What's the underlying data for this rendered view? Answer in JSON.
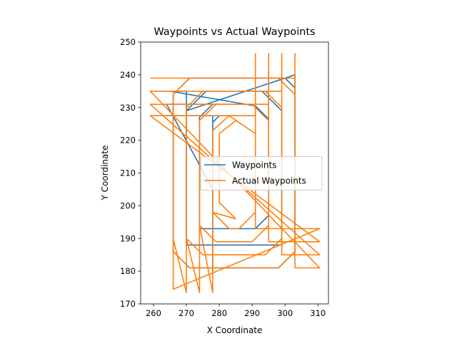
{
  "chart_data": {
    "type": "line",
    "title": "Waypoints vs Actual Waypoints",
    "xlabel": "X Coordinate",
    "ylabel": "Y Coordinate",
    "xlim": [
      256.1,
      313.2
    ],
    "ylim": [
      170,
      250
    ],
    "xticks": [
      "260",
      "270",
      "280",
      "290",
      "300",
      "310"
    ],
    "yticks": [
      "170",
      "180",
      "190",
      "200",
      "210",
      "220",
      "230",
      "240",
      "250"
    ],
    "grid": false,
    "legend_position": "center-right",
    "series": [
      {
        "name": "Waypoints",
        "color": "#1f77b4",
        "points": [
          [
            278.0,
            179.0
          ],
          [
            278.0,
            227.5
          ],
          [
            264.0,
            227.5
          ],
          [
            283.0,
            227.5
          ],
          [
            280.0,
            227.5
          ],
          [
            278.0,
            225.5
          ],
          [
            278.0,
            205.0
          ],
          [
            264.0,
            231.0
          ],
          [
            287.0,
            231.0
          ],
          [
            278.0,
            231.0
          ],
          [
            274.0,
            227.0
          ],
          [
            274.0,
            193.0
          ],
          [
            291.0,
            193.0
          ],
          [
            295.0,
            197.0
          ],
          [
            295.0,
            241.0
          ],
          [
            295.0,
            226.5
          ],
          [
            291.0,
            230.5
          ],
          [
            265.0,
            235.0
          ],
          [
            270.0,
            235.0
          ],
          [
            270.0,
            188.0
          ],
          [
            299.0,
            188.0
          ],
          [
            299.0,
            229.0
          ],
          [
            293.0,
            235.0
          ],
          [
            276.0,
            235.0
          ],
          [
            270.0,
            229.0
          ],
          [
            303.0,
            240.0
          ],
          [
            303.0,
            186.0
          ],
          [
            298.0,
            181.0
          ],
          [
            271.0,
            181.0
          ],
          [
            266.0,
            186.0
          ],
          [
            266.0,
            234.0
          ],
          [
            271.0,
            239.0
          ],
          [
            300.0,
            239.0
          ],
          [
            303.0,
            236.0
          ]
        ]
      },
      {
        "name": "Actual Waypoints",
        "color": "#ff7f0e",
        "points": [
          [
            259.0,
            239.0
          ],
          [
            298.0,
            239.0
          ],
          [
            303.0,
            234.0
          ],
          [
            303.0,
            186.0
          ],
          [
            298.0,
            181.0
          ],
          [
            271.0,
            181.0
          ],
          [
            266.0,
            186.0
          ],
          [
            266.0,
            234.0
          ],
          [
            271.0,
            239.0
          ],
          [
            303.0,
            239.0
          ],
          [
            303.0,
            246.5
          ],
          [
            303.0,
            181.0
          ],
          [
            310.5,
            181.0
          ],
          [
            259.0,
            235.0
          ],
          [
            294.0,
            235.0
          ],
          [
            299.0,
            230.0
          ],
          [
            299.0,
            190.0
          ],
          [
            294.0,
            185.0
          ],
          [
            275.0,
            185.0
          ],
          [
            270.0,
            190.0
          ],
          [
            270.0,
            230.0
          ],
          [
            275.0,
            235.0
          ],
          [
            299.0,
            235.0
          ],
          [
            299.0,
            246.5
          ],
          [
            299.0,
            185.0
          ],
          [
            310.5,
            185.0
          ],
          [
            259.0,
            231.0
          ],
          [
            290.0,
            231.0
          ],
          [
            295.0,
            226.0
          ],
          [
            295.0,
            194.0
          ],
          [
            290.0,
            189.0
          ],
          [
            279.0,
            189.0
          ],
          [
            274.0,
            194.0
          ],
          [
            274.0,
            226.0
          ],
          [
            279.0,
            231.0
          ],
          [
            295.0,
            231.0
          ],
          [
            295.0,
            246.5
          ],
          [
            295.0,
            189.0
          ],
          [
            310.5,
            189.0
          ],
          [
            259.0,
            227.5
          ],
          [
            283.0,
            227.5
          ],
          [
            291.0,
            222.0
          ],
          [
            291.0,
            198.0
          ],
          [
            286.0,
            193.0
          ],
          [
            283.0,
            193.0
          ],
          [
            278.0,
            198.0
          ],
          [
            278.0,
            223.0
          ],
          [
            283.0,
            227.5
          ],
          [
            291.0,
            227.5
          ],
          [
            291.0,
            246.5
          ],
          [
            291.0,
            193.0
          ],
          [
            310.5,
            193.0
          ],
          [
            266.0,
            174.5
          ],
          [
            266.0,
            190.0
          ],
          [
            270.0,
            173.5
          ],
          [
            270.0,
            190.0
          ],
          [
            274.0,
            173.5
          ],
          [
            274.0,
            194.0
          ],
          [
            278.0,
            173.5
          ],
          [
            278.0,
            198.0
          ],
          [
            285.0,
            196.0
          ],
          [
            280.0,
            201.0
          ],
          [
            280.0,
            222.0
          ],
          [
            285.0,
            226.0
          ]
        ]
      }
    ]
  }
}
